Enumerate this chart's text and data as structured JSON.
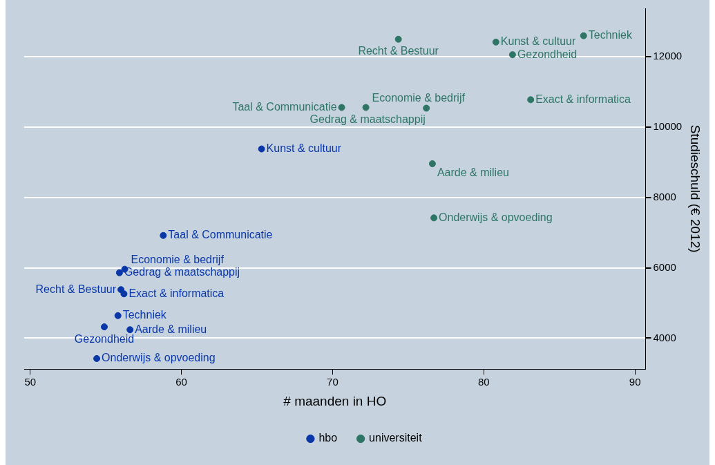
{
  "chart_data": {
    "type": "scatter",
    "xlabel": "# maanden in HO",
    "ylabel": "Studieschuld (€ 2012)",
    "xlim": [
      49.6,
      90.7
    ],
    "xticks": [
      50,
      60,
      70,
      80,
      90
    ],
    "ylim": [
      3120,
      13380
    ],
    "yticks": [
      4000,
      6000,
      8000,
      10000,
      12000
    ],
    "grid": "y",
    "legend": "bottom",
    "marker": "circle",
    "series": [
      {
        "name": "hbo",
        "color": "#0a37a8",
        "x": [
          65.3,
          58.8,
          56.25,
          55.9,
          56.0,
          56.2,
          55.8,
          54.9,
          56.6,
          54.4
        ],
        "values": [
          9380,
          6920,
          5960,
          5860,
          5380,
          5260,
          4640,
          4320,
          4240,
          3420
        ]
      },
      {
        "name": "universiteit",
        "color": "#2e7566",
        "x": [
          74.35,
          80.8,
          86.6,
          81.9,
          83.1,
          70.6,
          72.2,
          76.2,
          76.6,
          76.7
        ],
        "values": [
          12500,
          12420,
          12600,
          12060,
          10780,
          10560,
          10560,
          10540,
          8960,
          7420
        ]
      }
    ],
    "annotations": [
      {
        "text": "Kunst & cultuur",
        "x": 65.3,
        "y": 9380
      },
      {
        "text": "Taal & Communicatie",
        "x": 58.8,
        "y": 6920
      },
      {
        "text": "Economie & bedrijf",
        "x": 56.25,
        "y": 5960
      },
      {
        "text": "Gedrag & maatschappij",
        "x": 55.9,
        "y": 5860
      },
      {
        "text": "Recht & Bestuur",
        "x": 56.0,
        "y": 5380
      },
      {
        "text": "Exact & informatica",
        "x": 56.2,
        "y": 5260
      },
      {
        "text": "Techniek",
        "x": 55.8,
        "y": 4640
      },
      {
        "text": "Gezondheid",
        "x": 54.9,
        "y": 4320
      },
      {
        "text": "Aarde & milieu",
        "x": 56.6,
        "y": 4240
      },
      {
        "text": "Onderwijs & opvoeding",
        "x": 54.4,
        "y": 3420
      },
      {
        "text": "Recht & Bestuur",
        "x": 74.35,
        "y": 12500
      },
      {
        "text": "Kunst & cultuur",
        "x": 80.8,
        "y": 12420
      },
      {
        "text": "Techniek",
        "x": 86.6,
        "y": 12600
      },
      {
        "text": "Gezondheid",
        "x": 81.9,
        "y": 12060
      },
      {
        "text": "Exact & informatica",
        "x": 83.1,
        "y": 10780
      },
      {
        "text": "Taal & Communicatie",
        "x": 70.6,
        "y": 10560
      },
      {
        "text": "Economie & bedrijf",
        "x": 72.2,
        "y": 10560
      },
      {
        "text": "Gedrag & maatschappij",
        "x": 76.2,
        "y": 10540
      },
      {
        "text": "Aarde & milieu",
        "x": 76.6,
        "y": 8960
      },
      {
        "text": "Onderwijs & opvoeding",
        "x": 76.7,
        "y": 7420
      }
    ]
  }
}
